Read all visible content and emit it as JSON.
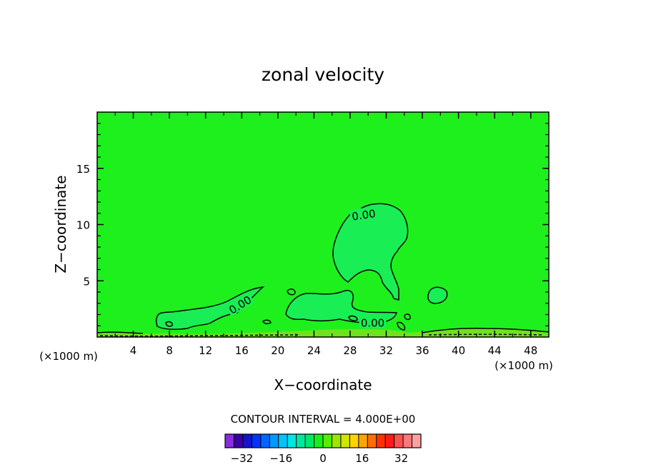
{
  "chart_data": {
    "type": "contour",
    "title": "zonal velocity",
    "xlabel": "X−coordinate",
    "ylabel": "Z−coordinate",
    "x_unit_label": "(×1000 m)",
    "xlim": [
      0,
      50
    ],
    "ylim": [
      0,
      20
    ],
    "x_ticks": [
      4,
      8,
      12,
      16,
      20,
      24,
      28,
      32,
      36,
      40,
      44,
      48
    ],
    "y_ticks": [
      5,
      10,
      15
    ],
    "contour_interval_text": "CONTOUR INTERVAL = 4.000E+00",
    "contour_labels": [
      {
        "text": "0.00",
        "x": 29.5,
        "z": 10.9,
        "angle": -8
      },
      {
        "text": "0.00",
        "x": 15.8,
        "z": 2.9,
        "angle": -32
      },
      {
        "text": "0.00",
        "x": 30.5,
        "z": 1.3,
        "angle": 0
      }
    ],
    "colorbar": {
      "ticks": [
        -32,
        -16,
        0,
        16,
        32
      ],
      "min": -40,
      "max": 40,
      "colors": [
        "#8a2be2",
        "#3a00a8",
        "#1515c8",
        "#0033ff",
        "#0066ff",
        "#0099ff",
        "#00c4ff",
        "#00e5e5",
        "#00e8a0",
        "#00e86a",
        "#1aee1a",
        "#55ee00",
        "#9be600",
        "#d2e400",
        "#ffd400",
        "#ffa500",
        "#ff6e00",
        "#ff3300",
        "#ff1a1a",
        "#ff5050",
        "#ff7878",
        "#ffa0a0"
      ]
    },
    "field_colors": {
      "background": "#1ef01e",
      "positive_region": "#19ee55",
      "surface_band": "#6fe21e"
    }
  }
}
